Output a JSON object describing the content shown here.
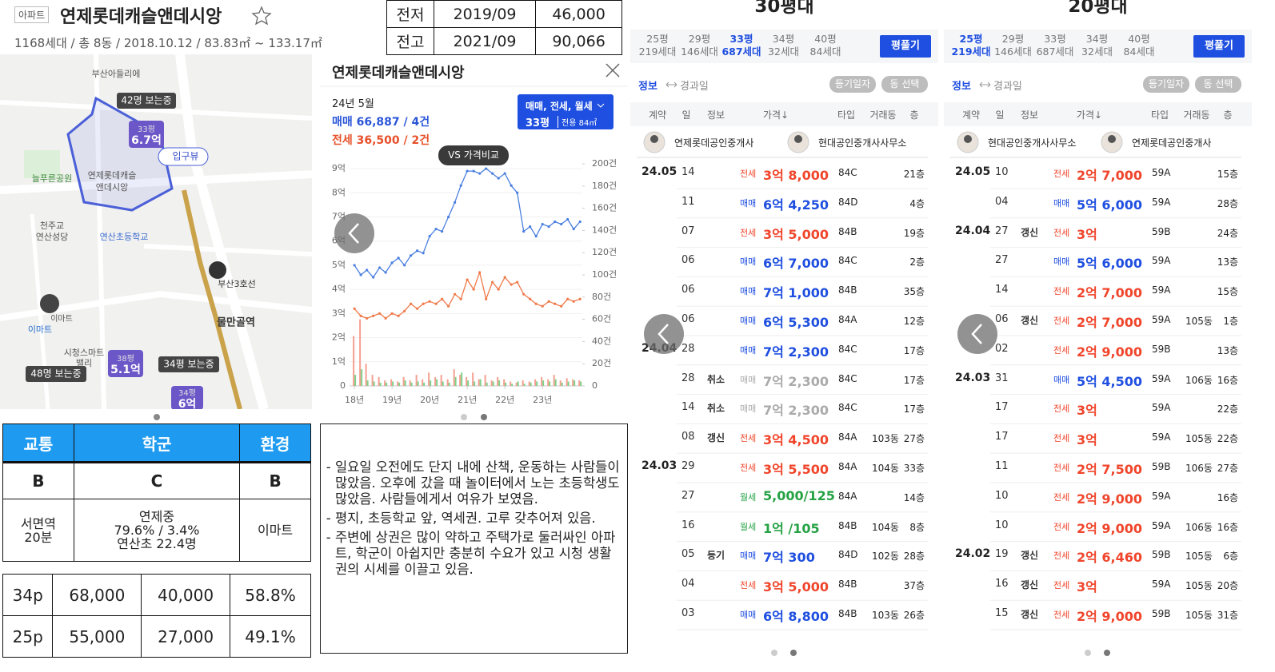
{
  "header": {
    "tag": "아파트",
    "name": "연제롯데캐슬앤데시앙",
    "info": "1168세대 / 총 8동 / 2018.10.12 / 83.83㎡ ~ 133.17㎡"
  },
  "record_table": {
    "rows": [
      [
        "전저",
        "2019/09",
        "46,000"
      ],
      [
        "전고",
        "2021/09",
        "90,066"
      ]
    ]
  },
  "map": {
    "labels": [
      "부산아들리에",
      "42명 보는중",
      "33평",
      "6.7억",
      "입구뷰",
      "늘푸른공원",
      "연제롯데캐슬",
      "앤데시앙",
      "천주교",
      "연산성당",
      "연산초등학교",
      "부산3호선",
      "물만골역",
      "이마트",
      "이마트",
      "시청스마트",
      "밸리",
      "38평",
      "5.1억",
      "34평 보는중",
      "48명 보는중",
      "34평",
      "6억"
    ]
  },
  "popup": {
    "title": "연제롯데캐슬앤데시앙",
    "month": "24년 5월",
    "sale": "매매 66,887 / 4건",
    "lease": "전세 36,500 / 2건",
    "filter": "매매, 전세, 월세",
    "size": "33평",
    "area": "전용 84㎡",
    "compare": "VS 가격비교"
  },
  "chart_data": {
    "type": "line",
    "x": [
      2018,
      2018.17,
      2018.33,
      2018.5,
      2018.67,
      2018.83,
      2019,
      2019.17,
      2019.33,
      2019.5,
      2019.67,
      2019.83,
      2020,
      2020.17,
      2020.33,
      2020.5,
      2020.67,
      2020.83,
      2021,
      2021.17,
      2021.33,
      2021.5,
      2021.67,
      2021.83,
      2022,
      2022.17,
      2022.33,
      2022.5,
      2022.67,
      2022.83,
      2023,
      2023.17,
      2023.33,
      2023.5,
      2023.67,
      2023.83,
      2024
    ],
    "series": [
      {
        "color": "#4a7fe0",
        "values": [
          5.0,
          4.6,
          4.8,
          4.5,
          4.9,
          4.7,
          5.1,
          5.3,
          5.0,
          5.4,
          5.6,
          5.5,
          6.2,
          6.5,
          6.4,
          7.0,
          7.6,
          8.3,
          8.9,
          8.9,
          8.8,
          9.0,
          8.8,
          8.6,
          8.8,
          8.3,
          8.0,
          6.4,
          6.6,
          6.2,
          6.7,
          6.6,
          6.8,
          6.7,
          6.9,
          6.5,
          6.8
        ]
      },
      {
        "color": "#f07a4a",
        "values": [
          3.2,
          2.9,
          2.8,
          2.9,
          3.0,
          2.8,
          3.0,
          2.9,
          3.1,
          3.4,
          3.2,
          3.4,
          3.5,
          3.4,
          3.6,
          3.3,
          3.8,
          3.6,
          4.4,
          4.0,
          4.7,
          3.6,
          4.3,
          4.0,
          4.5,
          4.2,
          4.3,
          3.8,
          3.6,
          3.4,
          3.3,
          3.5,
          3.4,
          3.3,
          3.6,
          3.5,
          3.6
        ]
      },
      {
        "type": "bar",
        "axis": "y2",
        "color": "#f4a090",
        "values": [
          45,
          60,
          20,
          10,
          8,
          5,
          6,
          4,
          8,
          5,
          10,
          6,
          12,
          8,
          10,
          6,
          15,
          10,
          8,
          12,
          6,
          10,
          5,
          8,
          6,
          4,
          3,
          5,
          4,
          6,
          8,
          6,
          10,
          5,
          7,
          6,
          5
        ]
      },
      {
        "type": "bar",
        "axis": "y2",
        "color": "#7fd08a",
        "values": [
          10,
          15,
          5,
          4,
          3,
          3,
          4,
          3,
          5,
          3,
          4,
          3,
          5,
          6,
          4,
          3,
          8,
          12,
          5,
          4,
          6,
          3,
          4,
          5,
          3,
          2,
          4,
          2,
          3,
          4,
          5,
          4,
          6,
          3,
          4,
          5,
          4
        ]
      }
    ],
    "xlim": [
      2017.87,
      2024.06
    ],
    "xticks": [
      {
        "value": 2018,
        "label": "18년"
      },
      {
        "value": 2019,
        "label": "19년"
      },
      {
        "value": 2020,
        "label": "20년"
      },
      {
        "value": 2021,
        "label": "21년"
      },
      {
        "value": 2022,
        "label": "22년"
      },
      {
        "value": 2023,
        "label": "23년"
      }
    ],
    "ylim": [
      0,
      9.2
    ],
    "yticks": [
      0,
      {
        "value": 1,
        "label": "1억"
      },
      {
        "value": 2,
        "label": "2억"
      },
      {
        "value": 3,
        "label": "3억"
      },
      {
        "value": 4,
        "label": "4억"
      },
      {
        "value": 5,
        "label": "5억"
      },
      {
        "value": 6,
        "label": "6억"
      },
      {
        "value": 7,
        "label": "7억"
      },
      {
        "value": 8,
        "label": "8억"
      },
      {
        "value": 9,
        "label": "9억"
      }
    ],
    "y2lim": [
      0,
      200
    ],
    "y2ticks": [
      0,
      {
        "value": 20,
        "label": "20건"
      },
      {
        "value": 40,
        "label": "40건"
      },
      {
        "value": 60,
        "label": "60건"
      },
      {
        "value": 80,
        "label": "80건"
      },
      {
        "value": 100,
        "label": "100건"
      },
      {
        "value": 120,
        "label": "120건"
      },
      {
        "value": 140,
        "label": "140건"
      },
      {
        "value": 160,
        "label": "160건"
      },
      {
        "value": 180,
        "label": "180건"
      },
      {
        "value": 200,
        "label": "200건"
      }
    ],
    "grid": true
  },
  "grades": {
    "headers": [
      "교통",
      "학군",
      "환경"
    ],
    "grades": [
      "B",
      "C",
      "B"
    ],
    "details": [
      [
        "서면역",
        "20분"
      ],
      [
        "연제중",
        "79.6% / 3.4%",
        "연산초 22.4명"
      ],
      [
        "이마트"
      ]
    ]
  },
  "price_table": {
    "rows": [
      [
        "34p",
        "68,000",
        "40,000",
        "58.8%"
      ],
      [
        "25p",
        "55,000",
        "27,000",
        "49.1%"
      ]
    ]
  },
  "notes": [
    "일요일 오전에도 단지 내에 산책, 운동하는 사람들이 많았음. 오후에 갔을 때 놀이터에서 노는 초등학생도 많았음. 사람들에게서 여유가 보였음.",
    "평지, 초등학교 앞, 역세권. 고루 갖추어져 있음.",
    "주변에 상권은 많이 약하고 주택가로 둘러싸인 아파트, 학군이 아쉽지만 충분히 수요가 있고 시청 생활권의 시세를 이끌고 있음."
  ],
  "panels": [
    {
      "title": "30평대",
      "selected": 2,
      "tabs": [
        [
          "25평",
          "219세대"
        ],
        [
          "29평",
          "146세대"
        ],
        [
          "33평",
          "687세대"
        ],
        [
          "34평",
          "32세대"
        ],
        [
          "40평",
          "84세대"
        ]
      ],
      "expand": "평풀기",
      "toggle": [
        "정보",
        "경과일"
      ],
      "buttons": [
        "등기일자",
        "동 선택"
      ],
      "columns": [
        "계약",
        "일",
        "정보",
        "가격↓",
        "타입",
        "거래동",
        "층"
      ],
      "agents": [
        "연제롯데공인중개사",
        "현대공인중개사사무소"
      ],
      "rows": [
        [
          "24.05",
          "14",
          "",
          "전세",
          "3억 8,000",
          "84C",
          "",
          "21층"
        ],
        [
          "",
          "11",
          "",
          "매매",
          "6억 4,250",
          "84D",
          "",
          "4층"
        ],
        [
          "",
          "07",
          "",
          "전세",
          "3억 5,000",
          "84B",
          "",
          "19층"
        ],
        [
          "",
          "06",
          "",
          "매매",
          "6억 7,000",
          "84C",
          "",
          "2층"
        ],
        [
          "",
          "06",
          "",
          "매매",
          "7억 1,000",
          "84B",
          "",
          "35층"
        ],
        [
          "",
          "06",
          "",
          "매매",
          "6억 5,300",
          "84A",
          "",
          "12층"
        ],
        [
          "24.04",
          "28",
          "",
          "매매",
          "7억 2,300",
          "84C",
          "",
          "17층"
        ],
        [
          "",
          "28",
          "취소",
          "매매",
          "7억 2,300",
          "84C",
          "",
          "17층"
        ],
        [
          "",
          "14",
          "취소",
          "매매",
          "7억 2,300",
          "84C",
          "",
          "17층"
        ],
        [
          "",
          "08",
          "갱신",
          "전세",
          "3억 4,500",
          "84A",
          "103동",
          "27층"
        ],
        [
          "24.03",
          "29",
          "",
          "전세",
          "3억 5,500",
          "84A",
          "104동",
          "33층"
        ],
        [
          "",
          "27",
          "",
          "월세",
          "5,000/125",
          "84A",
          "",
          "14층"
        ],
        [
          "",
          "16",
          "",
          "월세",
          "1억 /105",
          "84B",
          "104동",
          "8층"
        ],
        [
          "",
          "05",
          "등기",
          "매매",
          "7억 300",
          "84D",
          "102동",
          "28층"
        ],
        [
          "",
          "04",
          "",
          "전세",
          "3억 5,000",
          "84B",
          "",
          "37층"
        ],
        [
          "",
          "03",
          "",
          "매매",
          "6억 8,800",
          "84B",
          "103동",
          "26층"
        ]
      ]
    },
    {
      "title": "20평대",
      "selected": 0,
      "tabs": [
        [
          "25평",
          "219세대"
        ],
        [
          "29평",
          "146세대"
        ],
        [
          "33평",
          "687세대"
        ],
        [
          "34평",
          "32세대"
        ],
        [
          "40평",
          "84세대"
        ]
      ],
      "expand": "평풀기",
      "toggle": [
        "정보",
        "경과일"
      ],
      "buttons": [
        "등기일자",
        "동 선택"
      ],
      "columns": [
        "계약",
        "일",
        "정보",
        "가격↓",
        "타입",
        "거래동",
        "층"
      ],
      "agents": [
        "현대공인중개사사무소",
        "연제롯데공인중개사"
      ],
      "rows": [
        [
          "24.05",
          "10",
          "",
          "전세",
          "2억 7,000",
          "59A",
          "",
          "15층"
        ],
        [
          "",
          "04",
          "",
          "매매",
          "5억 6,000",
          "59A",
          "",
          "28층"
        ],
        [
          "24.04",
          "27",
          "갱신",
          "전세",
          "3억",
          "59B",
          "",
          "24층"
        ],
        [
          "",
          "27",
          "",
          "매매",
          "5억 6,000",
          "59A",
          "",
          "13층"
        ],
        [
          "",
          "14",
          "",
          "전세",
          "2억 7,000",
          "59A",
          "",
          "15층"
        ],
        [
          "",
          "06",
          "갱신",
          "전세",
          "2억 7,000",
          "59A",
          "105동",
          "1층"
        ],
        [
          "",
          "02",
          "",
          "전세",
          "2억 9,000",
          "59B",
          "",
          "13층"
        ],
        [
          "24.03",
          "31",
          "",
          "매매",
          "5억 4,500",
          "59A",
          "106동",
          "16층"
        ],
        [
          "",
          "17",
          "",
          "전세",
          "3억",
          "59A",
          "",
          "22층"
        ],
        [
          "",
          "17",
          "",
          "전세",
          "3억",
          "59A",
          "105동",
          "22층"
        ],
        [
          "",
          "11",
          "",
          "전세",
          "2억 7,500",
          "59B",
          "106동",
          "27층"
        ],
        [
          "",
          "10",
          "",
          "전세",
          "2억 9,000",
          "59A",
          "",
          "16층"
        ],
        [
          "",
          "10",
          "",
          "전세",
          "2억 9,000",
          "59A",
          "106동",
          "16층"
        ],
        [
          "24.02",
          "19",
          "갱신",
          "전세",
          "2억 6,460",
          "59B",
          "105동",
          "6층"
        ],
        [
          "",
          "16",
          "갱신",
          "전세",
          "3억",
          "59A",
          "105동",
          "20층"
        ],
        [
          "",
          "15",
          "갱신",
          "전세",
          "2억 9,000",
          "59B",
          "105동",
          "31층"
        ]
      ]
    }
  ]
}
